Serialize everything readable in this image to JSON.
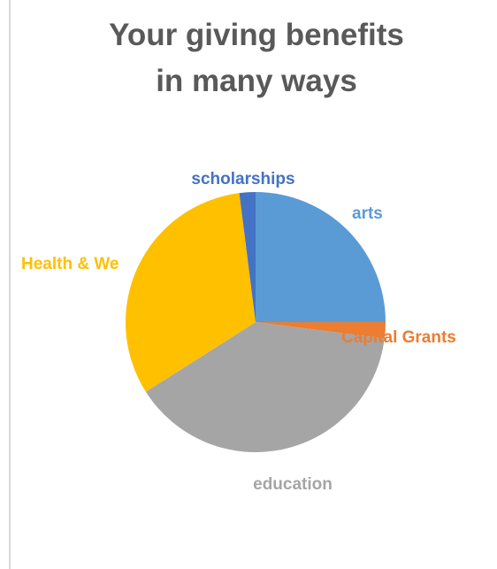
{
  "chart_data": {
    "type": "pie",
    "title": "Your giving benefits in many ways",
    "slices": [
      {
        "label": "arts",
        "value": 25.0,
        "color": "#5b9bd5",
        "label_color": "#5b9bd5"
      },
      {
        "label": "Capital Grants",
        "value": 2.0,
        "color": "#ed7d31",
        "label_color": "#ed7d31"
      },
      {
        "label": "education",
        "value": 39.0,
        "color": "#a5a5a5",
        "label_color": "#a5a5a5"
      },
      {
        "label": "Health & Wellness",
        "value": 32.0,
        "color": "#ffc000",
        "label_color": "#ffc000",
        "visible_label": "Health & We"
      },
      {
        "label": "scholarships",
        "value": 2.0,
        "color": "#4472c4",
        "label_color": "#4472c4"
      }
    ],
    "legend": "none"
  }
}
